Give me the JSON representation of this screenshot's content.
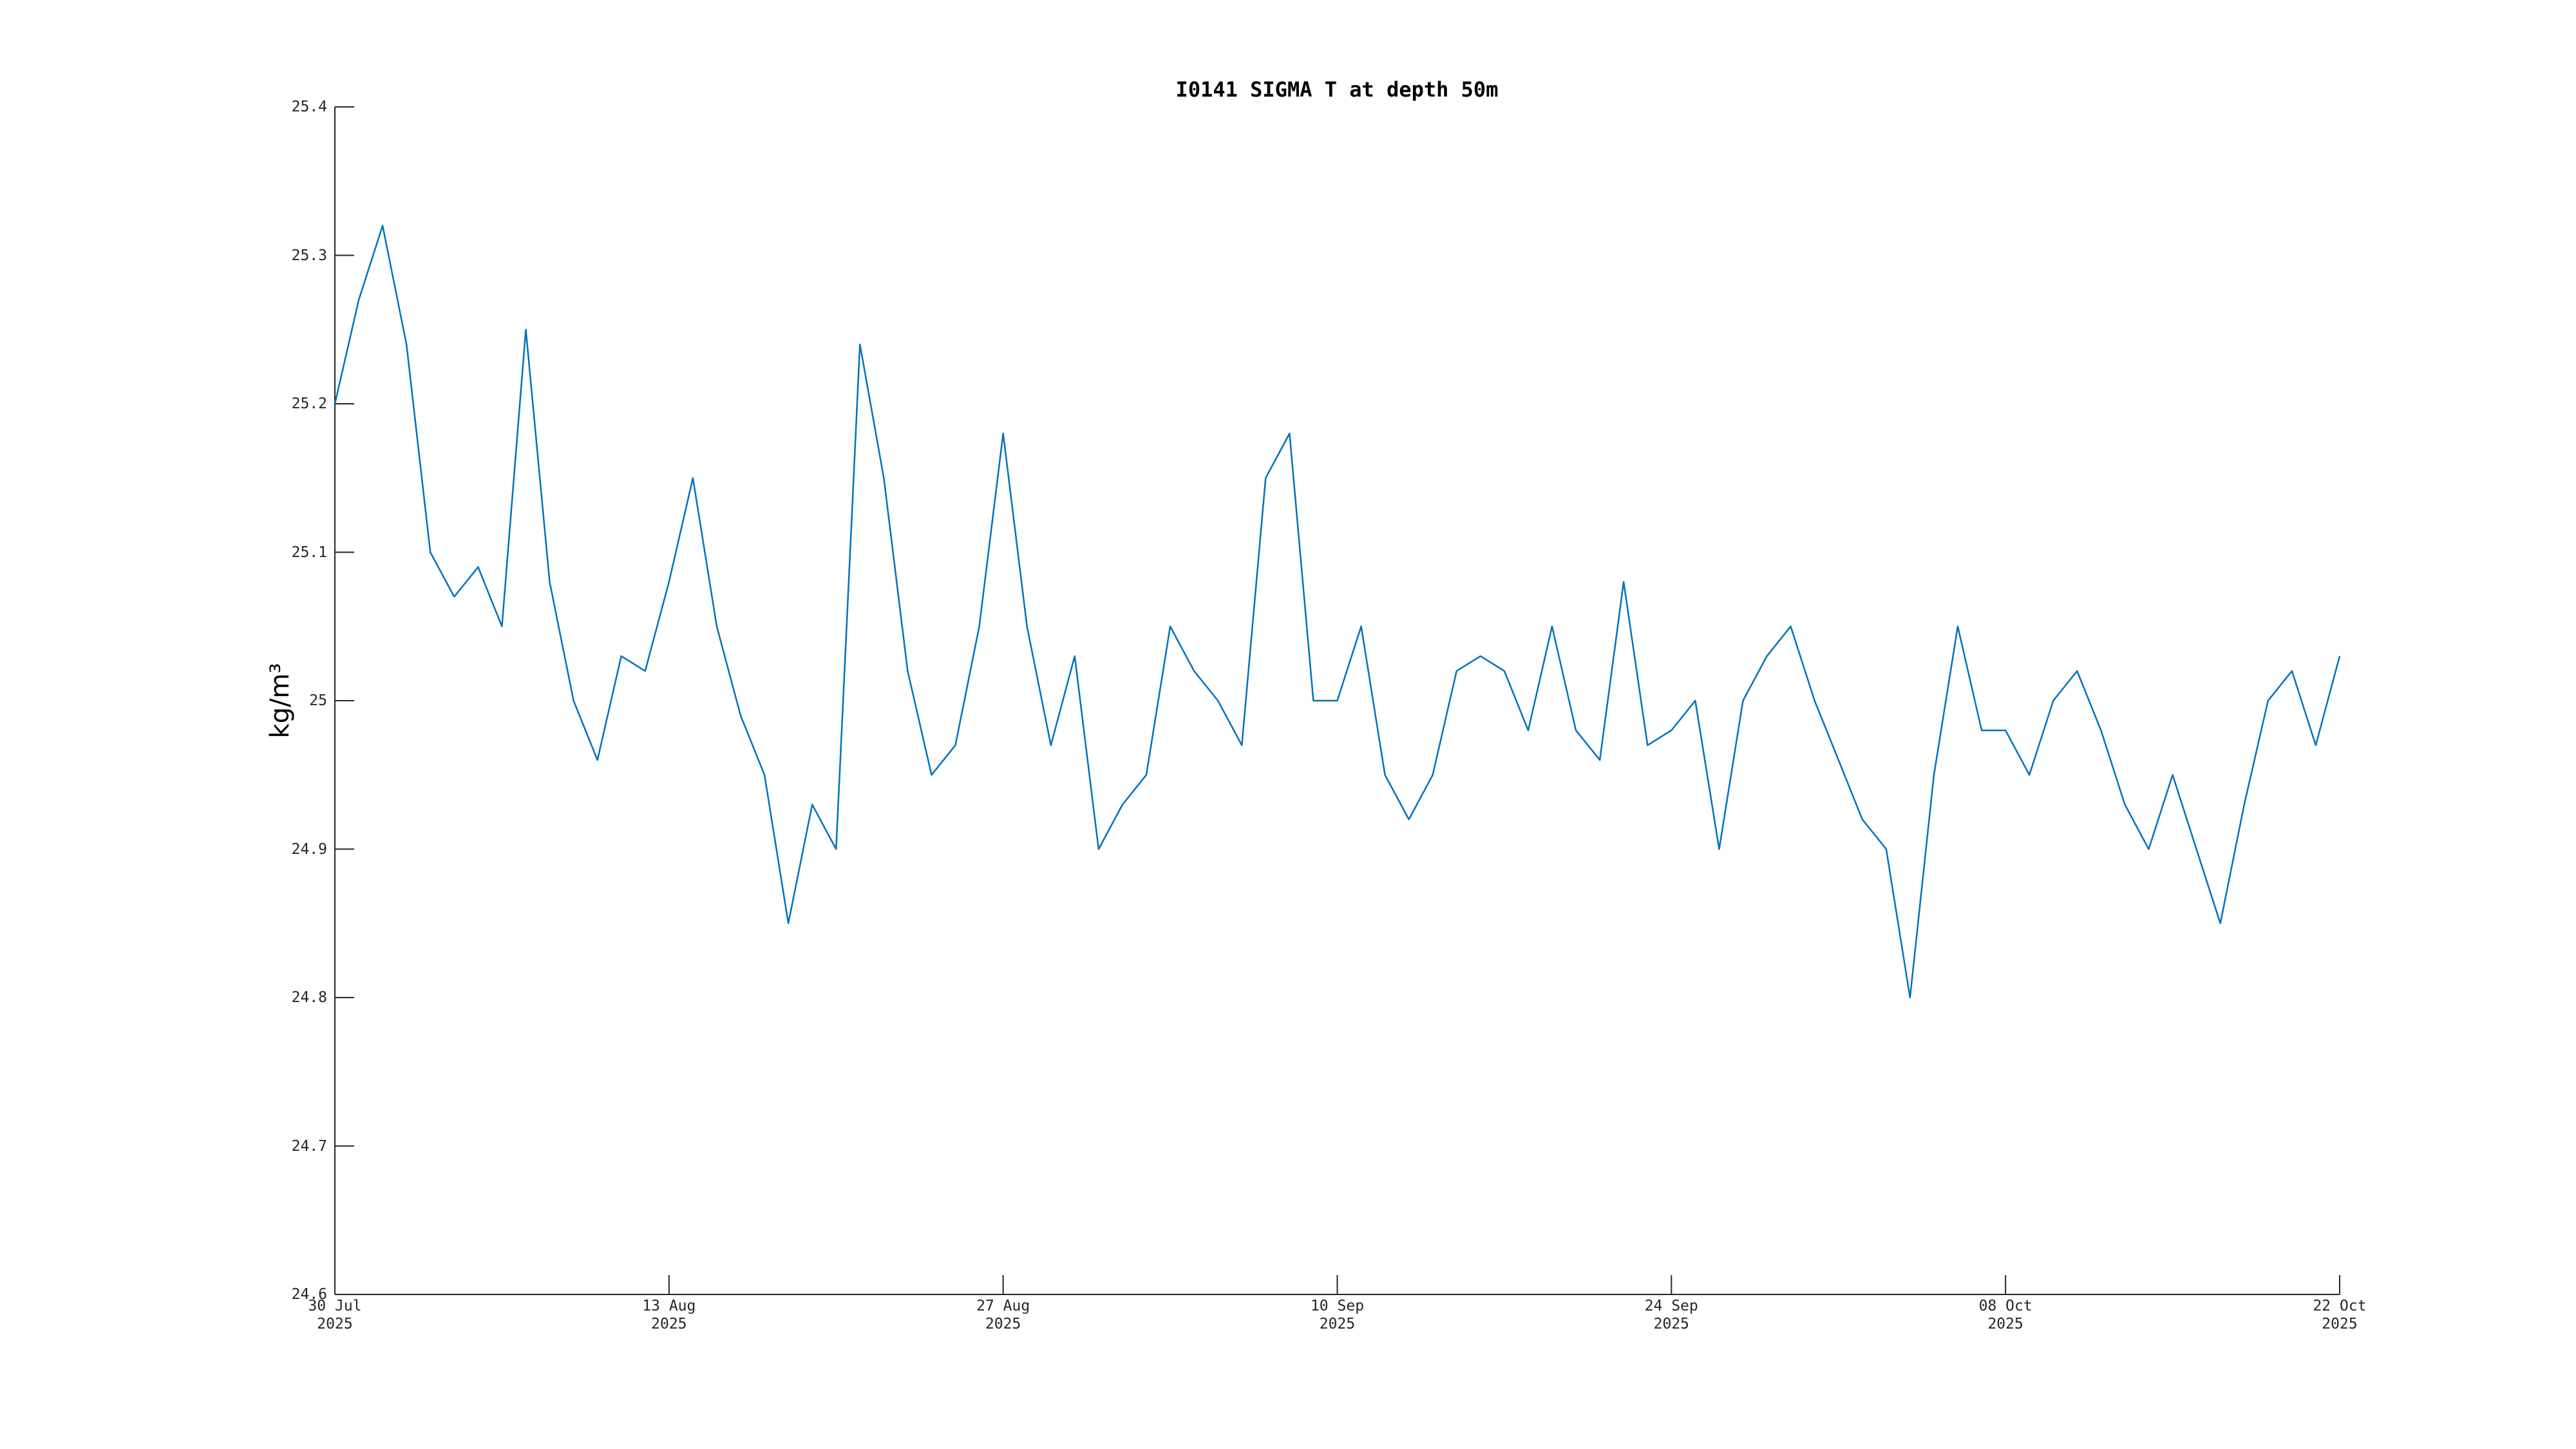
{
  "chart_data": {
    "type": "line",
    "title": "I0141 SIGMA T at depth 50m",
    "y_label": "kg/m³",
    "color": "#0072bd",
    "x": [
      "2025-07-30",
      "2025-07-31",
      "2025-08-01",
      "2025-08-02",
      "2025-08-03",
      "2025-08-04",
      "2025-08-05",
      "2025-08-06",
      "2025-08-07",
      "2025-08-08",
      "2025-08-09",
      "2025-08-10",
      "2025-08-11",
      "2025-08-12",
      "2025-08-13",
      "2025-08-14",
      "2025-08-15",
      "2025-08-16",
      "2025-08-17",
      "2025-08-18",
      "2025-08-19",
      "2025-08-20",
      "2025-08-21",
      "2025-08-22",
      "2025-08-23",
      "2025-08-24",
      "2025-08-25",
      "2025-08-26",
      "2025-08-27",
      "2025-08-28",
      "2025-08-29",
      "2025-08-30",
      "2025-08-31",
      "2025-09-01",
      "2025-09-02",
      "2025-09-03",
      "2025-09-04",
      "2025-09-05",
      "2025-09-06",
      "2025-09-07",
      "2025-09-08",
      "2025-09-09",
      "2025-09-10",
      "2025-09-11",
      "2025-09-12",
      "2025-09-13",
      "2025-09-14",
      "2025-09-15",
      "2025-09-16",
      "2025-09-17",
      "2025-09-18",
      "2025-09-19",
      "2025-09-20",
      "2025-09-21",
      "2025-09-22",
      "2025-09-23",
      "2025-09-24",
      "2025-09-25",
      "2025-09-26",
      "2025-09-27",
      "2025-09-28",
      "2025-09-29",
      "2025-09-30",
      "2025-10-01",
      "2025-10-02",
      "2025-10-03",
      "2025-10-04",
      "2025-10-05",
      "2025-10-06",
      "2025-10-07",
      "2025-10-08",
      "2025-10-09",
      "2025-10-10",
      "2025-10-11",
      "2025-10-12",
      "2025-10-13",
      "2025-10-14",
      "2025-10-15",
      "2025-10-16",
      "2025-10-17",
      "2025-10-18",
      "2025-10-19",
      "2025-10-20",
      "2025-10-21",
      "2025-10-22"
    ],
    "values": [
      25.2,
      25.27,
      25.32,
      25.24,
      25.1,
      25.07,
      25.09,
      25.05,
      25.25,
      25.08,
      25.0,
      24.96,
      25.03,
      25.02,
      25.08,
      25.15,
      25.05,
      24.99,
      24.95,
      24.85,
      24.93,
      24.9,
      25.24,
      25.15,
      25.02,
      24.95,
      24.97,
      25.05,
      25.18,
      25.05,
      24.97,
      25.03,
      24.9,
      24.93,
      24.95,
      25.05,
      25.02,
      25.0,
      24.97,
      25.15,
      25.18,
      25.0,
      25.0,
      25.05,
      24.95,
      24.92,
      24.95,
      25.02,
      25.03,
      25.02,
      24.98,
      25.05,
      24.98,
      24.96,
      25.08,
      24.97,
      24.98,
      25.0,
      24.9,
      25.0,
      25.03,
      25.05,
      25.0,
      24.96,
      24.92,
      24.9,
      24.8,
      24.95,
      25.05,
      24.98,
      24.98,
      24.95,
      25.0,
      25.02,
      24.98,
      24.93,
      24.9,
      24.95,
      24.9,
      24.85,
      24.93,
      25.0,
      25.02,
      24.97,
      25.03
    ],
    "xlim": [
      "2025-07-30",
      "2025-10-22"
    ],
    "xticks": [
      {
        "value": "2025-07-30",
        "label": "30 Jul\n2025"
      },
      {
        "value": "2025-08-13",
        "label": "13 Aug\n2025"
      },
      {
        "value": "2025-08-27",
        "label": "27 Aug\n2025"
      },
      {
        "value": "2025-09-10",
        "label": "10 Sep\n2025"
      },
      {
        "value": "2025-09-24",
        "label": "24 Sep\n2025"
      },
      {
        "value": "2025-10-08",
        "label": "08 Oct\n2025"
      },
      {
        "value": "2025-10-22",
        "label": "22 Oct\n2025"
      }
    ],
    "ylim": [
      24.6,
      25.4
    ],
    "yticks": [
      24.6,
      24.7,
      24.8,
      24.9,
      25,
      25.1,
      25.2,
      25.3,
      25.4
    ],
    "grid": false
  }
}
